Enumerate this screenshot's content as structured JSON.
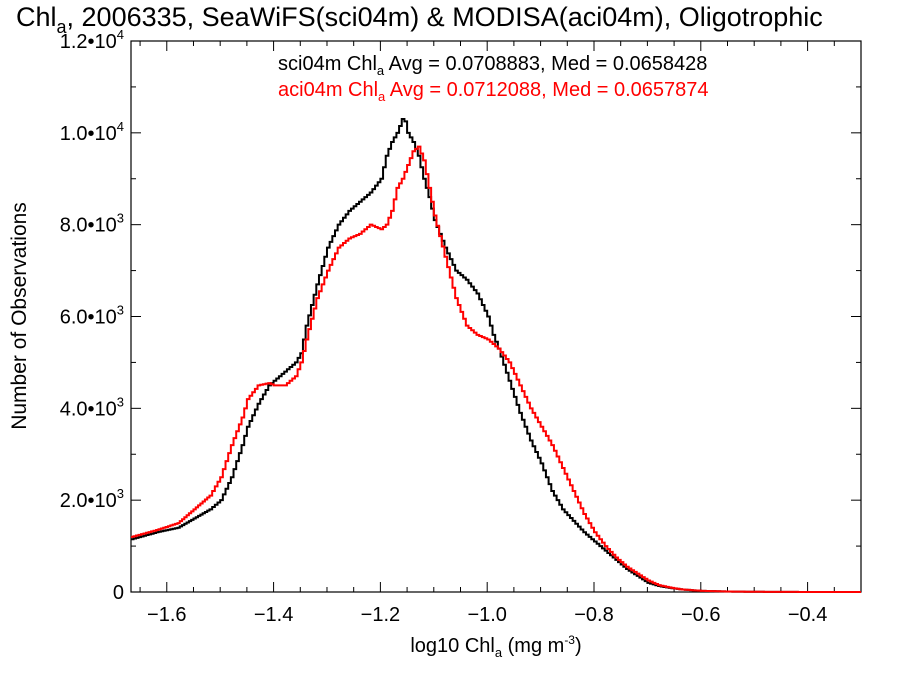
{
  "chart_data": {
    "type": "line",
    "title": {
      "pre": "Chl",
      "sub": "a",
      "post": ", 2006335, SeaWiFS(sci04m) & MODISA(aci04m), Oligotrophic"
    },
    "xlabel": {
      "pre": "log10 Chl",
      "sub": "a",
      "mid": " (mg m",
      "sup": "-3",
      "post": ")"
    },
    "ylabel": "Number of Observations",
    "xlim": [
      -1.667,
      -0.3
    ],
    "ylim": [
      0,
      12000
    ],
    "x_ticks": [
      {
        "value": -1.6,
        "label": "−1.6"
      },
      {
        "value": -1.4,
        "label": "−1.4"
      },
      {
        "value": -1.2,
        "label": "−1.2"
      },
      {
        "value": -1.0,
        "label": "−1.0"
      },
      {
        "value": -0.8,
        "label": "−0.8"
      },
      {
        "value": -0.6,
        "label": "−0.6"
      },
      {
        "value": -0.4,
        "label": "−0.4"
      }
    ],
    "y_ticks": [
      {
        "value": 0,
        "mant": "0",
        "exp": ""
      },
      {
        "value": 2000,
        "mant": "2.0•10",
        "exp": "3"
      },
      {
        "value": 4000,
        "mant": "4.0•10",
        "exp": "3"
      },
      {
        "value": 6000,
        "mant": "6.0•10",
        "exp": "3"
      },
      {
        "value": 8000,
        "mant": "8.0•10",
        "exp": "3"
      },
      {
        "value": 10000,
        "mant": "1.0•10",
        "exp": "4"
      },
      {
        "value": 12000,
        "mant": "1.2•10",
        "exp": "4"
      }
    ],
    "grid": false,
    "legend_position": "top-right",
    "series": [
      {
        "name": "sci04m",
        "color": "#000000",
        "stats": {
          "pre": "sci04m Chl",
          "sub": "a",
          "post": " Avg = 0.0708883, Med = 0.0658428"
        },
        "x": [
          -1.667,
          -1.62,
          -1.58,
          -1.55,
          -1.52,
          -1.5,
          -1.48,
          -1.46,
          -1.45,
          -1.43,
          -1.41,
          -1.4,
          -1.38,
          -1.36,
          -1.35,
          -1.34,
          -1.32,
          -1.3,
          -1.28,
          -1.26,
          -1.24,
          -1.22,
          -1.2,
          -1.19,
          -1.18,
          -1.17,
          -1.16,
          -1.155,
          -1.15,
          -1.14,
          -1.13,
          -1.12,
          -1.11,
          -1.1,
          -1.08,
          -1.06,
          -1.04,
          -1.02,
          -1.0,
          -0.99,
          -0.98,
          -0.96,
          -0.94,
          -0.92,
          -0.9,
          -0.88,
          -0.86,
          -0.84,
          -0.82,
          -0.8,
          -0.78,
          -0.76,
          -0.74,
          -0.72,
          -0.7,
          -0.68,
          -0.66,
          -0.64,
          -0.62,
          -0.6,
          -0.55,
          -0.5,
          -0.45,
          -0.4,
          -0.35,
          -0.3
        ],
        "y": [
          1150,
          1300,
          1400,
          1600,
          1800,
          2000,
          2500,
          3200,
          3600,
          4100,
          4500,
          4600,
          4800,
          5000,
          5200,
          5800,
          6700,
          7500,
          8000,
          8300,
          8500,
          8700,
          9000,
          9500,
          9800,
          10000,
          10300,
          10250,
          10000,
          9800,
          9500,
          9000,
          8600,
          8100,
          7500,
          7000,
          6800,
          6500,
          6000,
          5600,
          5300,
          4600,
          3900,
          3300,
          2800,
          2200,
          1800,
          1550,
          1300,
          1100,
          900,
          700,
          500,
          350,
          200,
          130,
          90,
          60,
          40,
          25,
          10,
          5,
          2,
          1,
          0,
          0
        ]
      },
      {
        "name": "aci04m",
        "color": "#ff0000",
        "stats": {
          "pre": "aci04m Chl",
          "sub": "a",
          "post": " Avg = 0.0712088, Med = 0.0657874"
        },
        "x": [
          -1.667,
          -1.62,
          -1.58,
          -1.55,
          -1.52,
          -1.5,
          -1.48,
          -1.46,
          -1.45,
          -1.43,
          -1.41,
          -1.4,
          -1.38,
          -1.36,
          -1.35,
          -1.34,
          -1.32,
          -1.3,
          -1.28,
          -1.26,
          -1.24,
          -1.22,
          -1.2,
          -1.19,
          -1.18,
          -1.17,
          -1.16,
          -1.15,
          -1.14,
          -1.13,
          -1.12,
          -1.11,
          -1.1,
          -1.08,
          -1.06,
          -1.04,
          -1.02,
          -1.0,
          -0.98,
          -0.96,
          -0.94,
          -0.92,
          -0.9,
          -0.88,
          -0.86,
          -0.84,
          -0.82,
          -0.8,
          -0.78,
          -0.76,
          -0.74,
          -0.72,
          -0.7,
          -0.68,
          -0.66,
          -0.64,
          -0.62,
          -0.6,
          -0.55,
          -0.5,
          -0.45,
          -0.4,
          -0.35,
          -0.3
        ],
        "y": [
          1200,
          1350,
          1500,
          1800,
          2100,
          2500,
          3200,
          3800,
          4200,
          4500,
          4550,
          4500,
          4500,
          4700,
          5000,
          5500,
          6400,
          7000,
          7500,
          7700,
          7800,
          8000,
          7900,
          8000,
          8300,
          8800,
          9000,
          9300,
          9600,
          9700,
          9400,
          8800,
          8200,
          7300,
          6400,
          5800,
          5600,
          5500,
          5300,
          5000,
          4500,
          4000,
          3600,
          3200,
          2700,
          2200,
          1700,
          1300,
          1000,
          750,
          550,
          400,
          250,
          150,
          100,
          60,
          40,
          25,
          10,
          5,
          2,
          1,
          0,
          0
        ]
      }
    ]
  }
}
